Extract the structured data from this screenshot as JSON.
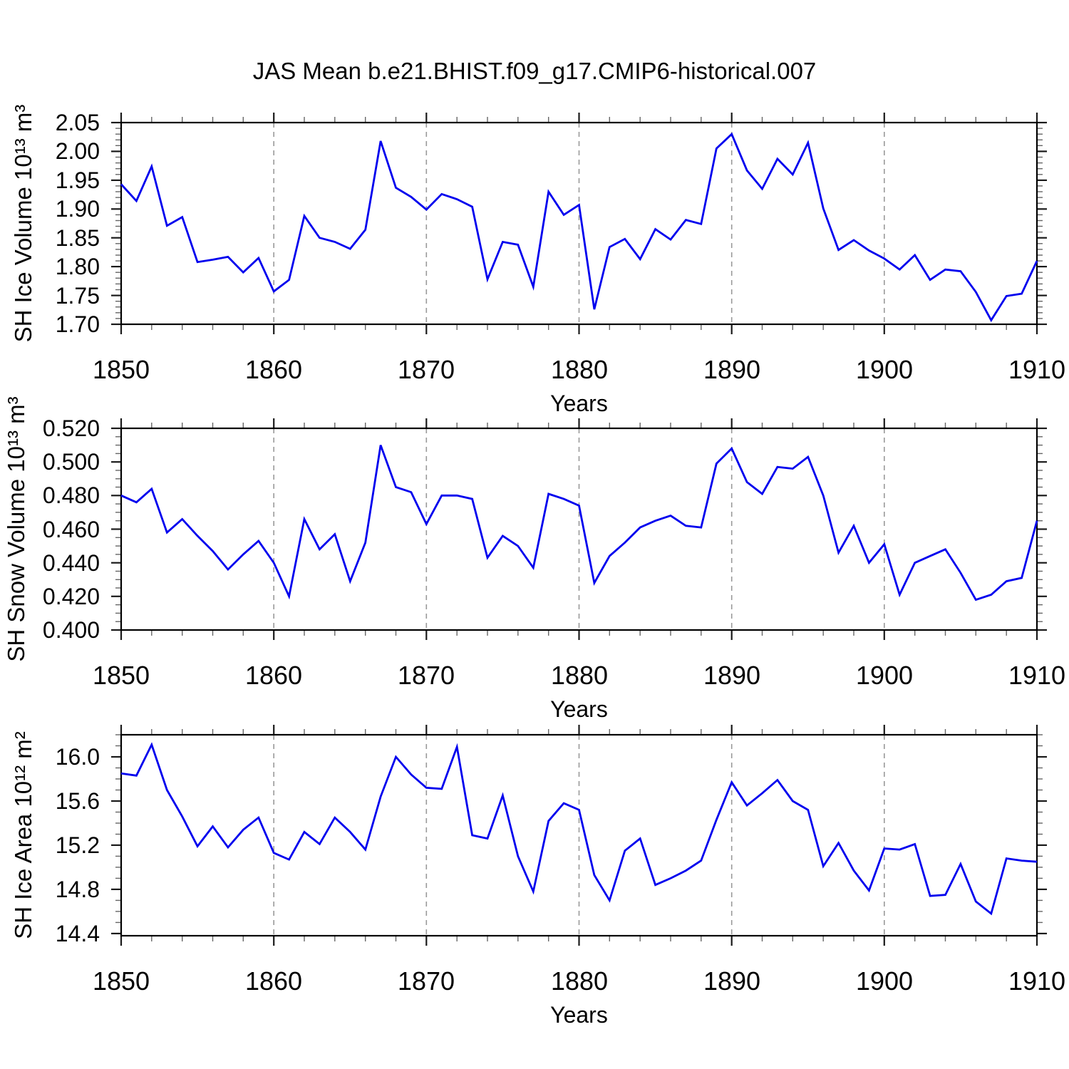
{
  "header": {
    "title": "JAS Mean b.e21.BHIST.f09_g17.CMIP6-historical.007"
  },
  "axis": {
    "xlabel": "Years"
  },
  "line_color": "#0000ee",
  "chart_data": [
    {
      "type": "line",
      "title": "JAS Mean b.e21.BHIST.f09_g17.CMIP6-historical.007",
      "ylabel": "SH Ice Volume 10¹³ m³",
      "xlabel": "Years",
      "x_start": 1850,
      "x_end": 1910,
      "xtick_values": [
        1850,
        1860,
        1870,
        1880,
        1890,
        1900,
        1910
      ],
      "xtick_labels": [
        "1850",
        "1860",
        "1870",
        "1880",
        "1890",
        "1900",
        "1910"
      ],
      "xtick_minor_step": 2,
      "grid_x": [
        1860,
        1870,
        1880,
        1890,
        1900
      ],
      "ytick_values": [
        1.7,
        1.75,
        1.8,
        1.85,
        1.9,
        1.95,
        2.0,
        2.05
      ],
      "ytick_labels": [
        "1.70",
        "1.75",
        "1.80",
        "1.85",
        "1.90",
        "1.95",
        "2.00",
        "2.05"
      ],
      "ytick_minor_step": 0.01,
      "ylim": [
        1.7,
        2.05
      ],
      "line_color": "#0000ee",
      "values": [
        1.943,
        1.914,
        1.974,
        1.871,
        1.886,
        1.808,
        1.812,
        1.817,
        1.79,
        1.815,
        1.757,
        1.777,
        1.888,
        1.85,
        1.843,
        1.831,
        1.864,
        2.018,
        1.937,
        1.921,
        1.899,
        1.926,
        1.917,
        1.904,
        1.778,
        1.843,
        1.838,
        1.765,
        1.93,
        1.89,
        1.907,
        1.726,
        1.834,
        1.848,
        1.813,
        1.865,
        1.847,
        1.881,
        1.874,
        2.005,
        2.03,
        1.967,
        1.935,
        1.987,
        1.96,
        2.015,
        1.901,
        1.829,
        1.846,
        1.828,
        1.814,
        1.795,
        1.82,
        1.777,
        1.795,
        1.792,
        1.756,
        1.707,
        1.749,
        1.753,
        1.81
      ]
    },
    {
      "type": "line",
      "ylabel": "SH Snow Volume 10¹³ m³",
      "xlabel": "Years",
      "x_start": 1850,
      "x_end": 1910,
      "xtick_values": [
        1850,
        1860,
        1870,
        1880,
        1890,
        1900,
        1910
      ],
      "xtick_labels": [
        "1850",
        "1860",
        "1870",
        "1880",
        "1890",
        "1900",
        "1910"
      ],
      "xtick_minor_step": 2,
      "grid_x": [
        1860,
        1870,
        1880,
        1890,
        1900
      ],
      "ytick_values": [
        0.4,
        0.42,
        0.44,
        0.46,
        0.48,
        0.5,
        0.52
      ],
      "ytick_labels": [
        "0.400",
        "0.420",
        "0.440",
        "0.460",
        "0.480",
        "0.500",
        "0.520"
      ],
      "ytick_minor_step": 0.005,
      "ylim": [
        0.4,
        0.52
      ],
      "line_color": "#0000ee",
      "values": [
        0.48,
        0.476,
        0.484,
        0.458,
        0.466,
        0.456,
        0.447,
        0.436,
        0.445,
        0.453,
        0.44,
        0.42,
        0.466,
        0.448,
        0.457,
        0.429,
        0.452,
        0.51,
        0.485,
        0.482,
        0.463,
        0.48,
        0.48,
        0.478,
        0.443,
        0.456,
        0.45,
        0.437,
        0.481,
        0.478,
        0.474,
        0.428,
        0.444,
        0.452,
        0.461,
        0.465,
        0.468,
        0.462,
        0.461,
        0.499,
        0.508,
        0.488,
        0.481,
        0.497,
        0.496,
        0.503,
        0.48,
        0.446,
        0.462,
        0.44,
        0.451,
        0.421,
        0.44,
        0.444,
        0.448,
        0.434,
        0.418,
        0.421,
        0.429,
        0.431,
        0.465
      ]
    },
    {
      "type": "line",
      "ylabel": "SH Ice Area 10¹² m²",
      "xlabel": "Years",
      "x_start": 1850,
      "x_end": 1910,
      "xtick_values": [
        1850,
        1860,
        1870,
        1880,
        1890,
        1900,
        1910
      ],
      "xtick_labels": [
        "1850",
        "1860",
        "1870",
        "1880",
        "1890",
        "1900",
        "1910"
      ],
      "xtick_minor_step": 2,
      "grid_x": [
        1860,
        1870,
        1880,
        1890,
        1900
      ],
      "ytick_values": [
        14.4,
        14.8,
        15.2,
        15.6,
        16.0
      ],
      "ytick_labels": [
        "14.4",
        "14.8",
        "15.2",
        "15.6",
        "16.0"
      ],
      "ytick_minor_step": 0.1,
      "ylim": [
        14.38,
        16.2
      ],
      "line_color": "#0000ee",
      "values": [
        15.85,
        15.83,
        16.11,
        15.7,
        15.46,
        15.19,
        15.37,
        15.18,
        15.34,
        15.45,
        15.13,
        15.07,
        15.32,
        15.21,
        15.45,
        15.32,
        15.16,
        15.64,
        16.0,
        15.84,
        15.72,
        15.71,
        16.09,
        15.29,
        15.26,
        15.65,
        15.1,
        14.78,
        15.42,
        15.58,
        15.52,
        14.93,
        14.7,
        15.15,
        15.26,
        14.84,
        14.9,
        14.97,
        15.06,
        15.43,
        15.77,
        15.56,
        15.67,
        15.79,
        15.6,
        15.52,
        15.01,
        15.22,
        14.97,
        14.79,
        15.17,
        15.16,
        15.21,
        14.74,
        14.75,
        15.03,
        14.69,
        14.58,
        15.08,
        15.06,
        15.05
      ]
    }
  ]
}
